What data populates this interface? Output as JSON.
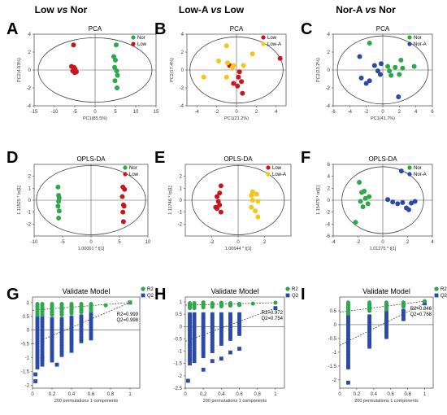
{
  "column_titles": [
    {
      "parts": [
        {
          "t": "Low ",
          "i": false
        },
        {
          "t": "vs",
          "i": true
        },
        {
          "t": " Nor",
          "i": false
        }
      ]
    },
    {
      "parts": [
        {
          "t": "Low-A ",
          "i": false
        },
        {
          "t": "vs",
          "i": true
        },
        {
          "t": " Low",
          "i": false
        }
      ]
    },
    {
      "parts": [
        {
          "t": "Nor-A ",
          "i": false
        },
        {
          "t": "vs",
          "i": true
        },
        {
          "t": " Nor",
          "i": false
        }
      ]
    }
  ],
  "colors": {
    "Nor": "#2ea84a",
    "Low": "#c8161d",
    "Low-A": "#f5c518",
    "Nor-A": "#2b4aa8",
    "R2": "#2ea84a",
    "Q2": "#2b4aa8"
  },
  "chart_data": [
    {
      "panel": "A",
      "type": "scatter",
      "title": "PCA",
      "xlabel": "PC1(85.5%)",
      "ylabel": "PC2(4.03%)",
      "xlim": [
        -15,
        15
      ],
      "ylim": [
        -4,
        4
      ],
      "xticks": [
        -15,
        -10,
        -5,
        0,
        5,
        10,
        15
      ],
      "yticks": [
        -4,
        -2,
        0,
        2,
        4
      ],
      "legend": [
        "Nor",
        "Low"
      ],
      "legend_position": "top-right",
      "ellipse": {
        "rx": 14,
        "ry": 3.6
      },
      "series": [
        {
          "name": "Nor",
          "points": [
            [
              5.2,
              2.8
            ],
            [
              4.6,
              1.5
            ],
            [
              5.0,
              1.1
            ],
            [
              4.8,
              0.3
            ],
            [
              5.3,
              -0.1
            ],
            [
              5.5,
              -0.6
            ],
            [
              4.9,
              -1.2
            ],
            [
              5.4,
              -2.0
            ]
          ]
        },
        {
          "name": "Low",
          "points": [
            [
              -5.3,
              2.8
            ],
            [
              -5.8,
              0.4
            ],
            [
              -5.2,
              0.3
            ],
            [
              -4.9,
              0.1
            ],
            [
              -5.5,
              -0.1
            ],
            [
              -4.6,
              -0.2
            ],
            [
              -5.0,
              -0.3
            ]
          ]
        }
      ]
    },
    {
      "panel": "B",
      "type": "scatter",
      "title": "PCA",
      "xlabel": "PC1(21.2%)",
      "ylabel": "PC2(17.4%)",
      "xlim": [
        -5,
        5
      ],
      "ylim": [
        -4,
        4
      ],
      "xticks": [
        -4,
        -2,
        0,
        2,
        4
      ],
      "yticks": [
        -4,
        -2,
        0,
        2,
        4
      ],
      "legend": [
        "Low",
        "Low-A"
      ],
      "legend_position": "top-right",
      "ellipse": {
        "rx": 4.7,
        "ry": 3.7
      },
      "series": [
        {
          "name": "Low",
          "points": [
            [
              4.4,
              1.3
            ],
            [
              -0.7,
              0.5
            ],
            [
              0.3,
              -0.2
            ],
            [
              0.2,
              -0.8
            ],
            [
              0.5,
              -1.3
            ],
            [
              0.1,
              -1.8
            ],
            [
              -0.3,
              -1.5
            ],
            [
              0.6,
              -2.6
            ]
          ]
        },
        {
          "name": "Low-A",
          "points": [
            [
              -1.0,
              2.7
            ],
            [
              1.6,
              1.8
            ],
            [
              -1.8,
              1.0
            ],
            [
              -0.9,
              0.8
            ],
            [
              -0.3,
              0.5
            ],
            [
              -0.4,
              0.3
            ],
            [
              0.7,
              0.5
            ],
            [
              -3.3,
              -0.8
            ],
            [
              -1.0,
              -0.8
            ]
          ]
        }
      ]
    },
    {
      "panel": "C",
      "type": "scatter",
      "title": "PCA",
      "xlabel": "PC1(41.7%)",
      "ylabel": "PC2(23.2%)",
      "xlim": [
        -6,
        6
      ],
      "ylim": [
        -4,
        4
      ],
      "xticks": [
        -6,
        -4,
        -2,
        0,
        2,
        4,
        6
      ],
      "yticks": [
        -4,
        -2,
        0,
        2,
        4
      ],
      "legend": [
        "Nor",
        "Nor-A"
      ],
      "legend_position": "top-right",
      "ellipse": {
        "rx": 5.5,
        "ry": 3.8
      },
      "series": [
        {
          "name": "Nor",
          "points": [
            [
              -1.6,
              3.0
            ],
            [
              0.6,
              0.4
            ],
            [
              1.5,
              0.3
            ],
            [
              2.2,
              1.1
            ],
            [
              2.4,
              0.2
            ],
            [
              3.8,
              0.4
            ],
            [
              0.8,
              -0.1
            ],
            [
              1.0,
              -0.6
            ],
            [
              2.0,
              -0.5
            ]
          ]
        },
        {
          "name": "Nor-A",
          "points": [
            [
              -2.8,
              1.5
            ],
            [
              -1.0,
              0.5
            ],
            [
              -0.6,
              -0.1
            ],
            [
              -0.3,
              -0.5
            ],
            [
              -0.2,
              0.7
            ],
            [
              -2.6,
              -0.9
            ],
            [
              -1.6,
              -1.2
            ],
            [
              -2.0,
              -1.5
            ],
            [
              1.9,
              -3.0
            ]
          ]
        }
      ]
    },
    {
      "panel": "D",
      "type": "scatter",
      "title": "OPLS-DA",
      "xlabel": "1.00001 * t[1]",
      "ylabel": "1.11525 * to[1]",
      "xlim": [
        -10,
        10
      ],
      "ylim": [
        -3,
        3
      ],
      "xticks": [
        -10,
        -5,
        0,
        5,
        10
      ],
      "yticks": [
        -2,
        -1,
        0,
        1,
        2
      ],
      "legend": [
        "Nor",
        "Low"
      ],
      "legend_position": "top-right",
      "ellipse": {
        "rx": 9.6,
        "ry": 2.9
      },
      "series": [
        {
          "name": "Nor",
          "points": [
            [
              -5.8,
              1.1
            ],
            [
              -5.7,
              0.4
            ],
            [
              -5.6,
              0.2
            ],
            [
              -5.7,
              -0.1
            ],
            [
              -5.8,
              -0.5
            ],
            [
              -5.6,
              -0.9
            ],
            [
              -5.7,
              -1.5
            ]
          ]
        },
        {
          "name": "Low",
          "points": [
            [
              5.6,
              1.1
            ],
            [
              5.9,
              0.9
            ],
            [
              5.5,
              0.3
            ],
            [
              5.7,
              -0.4
            ],
            [
              5.8,
              -0.5
            ],
            [
              5.6,
              -1.0
            ],
            [
              5.7,
              -1.8
            ]
          ]
        }
      ]
    },
    {
      "panel": "E",
      "type": "scatter",
      "title": "OPLS-DA",
      "xlabel": "1.00644 * t[1]",
      "ylabel": "1.11746 * to[1]",
      "xlim": [
        -4,
        4
      ],
      "ylim": [
        -3,
        3
      ],
      "xticks": [
        -2,
        0,
        2
      ],
      "yticks": [
        -2,
        -1,
        0,
        1,
        2
      ],
      "legend": [
        "Low",
        "Low-A"
      ],
      "legend_position": "top-right",
      "ellipse": {
        "rx": 3.5,
        "ry": 2.9
      },
      "series": [
        {
          "name": "Low",
          "points": [
            [
              -1.3,
              1.2
            ],
            [
              -1.4,
              0.6
            ],
            [
              -1.6,
              0.3
            ],
            [
              -1.5,
              -0.1
            ],
            [
              -1.4,
              -0.4
            ],
            [
              -1.7,
              -0.6
            ],
            [
              -1.6,
              -0.7
            ],
            [
              -1.3,
              -1.0
            ]
          ]
        },
        {
          "name": "Low-A",
          "points": [
            [
              1.1,
              0.7
            ],
            [
              1.0,
              0.4
            ],
            [
              1.4,
              0.5
            ],
            [
              1.1,
              0.0
            ],
            [
              1.5,
              -0.1
            ],
            [
              1.0,
              -0.6
            ],
            [
              1.3,
              -0.9
            ],
            [
              1.5,
              -1.4
            ]
          ]
        }
      ]
    },
    {
      "panel": "F",
      "type": "scatter",
      "title": "OPLS-DA",
      "xlabel": "1.01275 * t[1]",
      "ylabel": "1.15479 * to[1]",
      "xlim": [
        -4,
        4
      ],
      "ylim": [
        -6,
        6
      ],
      "xticks": [
        -4,
        -2,
        0,
        2,
        4
      ],
      "yticks": [
        -6,
        -4,
        -2,
        0,
        2,
        4,
        6
      ],
      "legend": [
        "Nor",
        "Nor-A"
      ],
      "legend_position": "top-right",
      "ellipse": {
        "rx": 3.3,
        "ry": 5.6
      },
      "series": [
        {
          "name": "Nor",
          "points": [
            [
              -1.9,
              3.0
            ],
            [
              -1.7,
              1.3
            ],
            [
              -1.5,
              1.5
            ],
            [
              -1.4,
              0.3
            ],
            [
              -1.1,
              0.6
            ],
            [
              -1.8,
              -0.2
            ],
            [
              -1.2,
              -0.6
            ],
            [
              -1.6,
              -1.1
            ],
            [
              -2.2,
              -3.7
            ]
          ]
        },
        {
          "name": "Nor-A",
          "points": [
            [
              1.5,
              4.9
            ],
            [
              0.4,
              0.1
            ],
            [
              0.8,
              -0.3
            ],
            [
              1.6,
              -0.4
            ],
            [
              2.3,
              -0.5
            ],
            [
              2.6,
              -0.2
            ],
            [
              1.2,
              -0.6
            ],
            [
              1.9,
              -1.3
            ],
            [
              2.1,
              -1.6
            ]
          ]
        }
      ]
    },
    {
      "panel": "G",
      "type": "scatter",
      "title": "Validate Model",
      "xlabel": "200 permutations 1 components",
      "xlim": [
        0,
        1.1
      ],
      "ylim": [
        -2.1,
        1.2
      ],
      "xticks": [
        0,
        0.2,
        0.4,
        0.6,
        0.8,
        1
      ],
      "yticks": [
        -2,
        -1.5,
        -1,
        -0.5,
        0,
        0.5,
        1
      ],
      "legend": [
        "R2",
        "Q2"
      ],
      "legend_position": "top-right",
      "annotation": [
        "R2=0.999",
        "Q2=0.998"
      ],
      "r2_line": [
        [
          0,
          0.72
        ],
        [
          1,
          1.0
        ]
      ],
      "q2_line": [
        [
          0,
          -0.5
        ],
        [
          1,
          1.0
        ]
      ],
      "permutations": [
        {
          "x": 0.05,
          "r2_min": 0.55,
          "r2_max": 0.95,
          "q2_min": -1.4,
          "q2_max": 0.45
        },
        {
          "x": 0.1,
          "r2_min": 0.55,
          "r2_max": 0.95,
          "q2_min": -1.3,
          "q2_max": 0.45
        },
        {
          "x": 0.2,
          "r2_min": 0.55,
          "r2_max": 0.95,
          "q2_min": -1.1,
          "q2_max": 0.4
        },
        {
          "x": 0.3,
          "r2_min": 0.55,
          "r2_max": 0.95,
          "q2_min": -0.95,
          "q2_max": 0.4
        },
        {
          "x": 0.4,
          "r2_min": 0.6,
          "r2_max": 0.95,
          "q2_min": -0.8,
          "q2_max": 0.45
        },
        {
          "x": 0.5,
          "r2_min": 0.65,
          "r2_max": 0.95,
          "q2_min": -0.45,
          "q2_max": 0.5
        },
        {
          "x": 0.6,
          "r2_min": 0.7,
          "r2_max": 0.95,
          "q2_min": -0.3,
          "q2_max": 0.6
        }
      ],
      "extra_r2": [
        [
          0.75,
          0.9
        ],
        [
          1.0,
          1.0
        ]
      ],
      "extra_q2": [
        [
          0.03,
          -1.6
        ],
        [
          0.03,
          -1.85
        ],
        [
          0.1,
          -1.0
        ],
        [
          0.25,
          -1.25
        ],
        [
          1.0,
          1.0
        ]
      ]
    },
    {
      "panel": "H",
      "type": "scatter",
      "title": "Validate Model",
      "xlabel": "200 permutations 1 components",
      "xlim": [
        0,
        1.1
      ],
      "ylim": [
        -2.5,
        1.2
      ],
      "xticks": [
        0,
        0.2,
        0.4,
        0.6,
        0.8,
        1
      ],
      "yticks": [
        -2.5,
        -2,
        -1.5,
        -1,
        -0.5,
        0,
        0.5,
        1
      ],
      "legend": [
        "R2",
        "Q2"
      ],
      "legend_position": "top-right",
      "annotation": [
        "R2=0.972",
        "Q2=0.754"
      ],
      "r2_line": [
        [
          0,
          0.87
        ],
        [
          1,
          0.97
        ]
      ],
      "q2_line": [
        [
          0,
          -0.6
        ],
        [
          1,
          0.75
        ]
      ],
      "permutations": [
        {
          "x": 0.05,
          "r2_min": 0.75,
          "r2_max": 0.98,
          "q2_min": -1.5,
          "q2_max": 0.5
        },
        {
          "x": 0.1,
          "r2_min": 0.75,
          "r2_max": 0.98,
          "q2_min": -1.4,
          "q2_max": 0.5
        },
        {
          "x": 0.2,
          "r2_min": 0.78,
          "r2_max": 0.98,
          "q2_min": -1.2,
          "q2_max": 0.5
        },
        {
          "x": 0.3,
          "r2_min": 0.8,
          "r2_max": 0.97,
          "q2_min": -1.0,
          "q2_max": 0.5
        },
        {
          "x": 0.4,
          "r2_min": 0.82,
          "r2_max": 0.97,
          "q2_min": -0.7,
          "q2_max": 0.5
        },
        {
          "x": 0.5,
          "r2_min": 0.85,
          "r2_max": 0.97,
          "q2_min": -0.5,
          "q2_max": 0.5
        },
        {
          "x": 0.6,
          "r2_min": 0.87,
          "r2_max": 0.96,
          "q2_min": -0.3,
          "q2_max": 0.5
        }
      ],
      "extra_r2": [
        [
          0.75,
          0.93
        ],
        [
          1.0,
          0.97
        ]
      ],
      "extra_q2": [
        [
          0.03,
          -2.2
        ],
        [
          0.2,
          -1.75
        ],
        [
          0.3,
          -1.4
        ],
        [
          0.4,
          -1.3
        ],
        [
          0.5,
          -1.05
        ],
        [
          0.6,
          -0.9
        ],
        [
          1.0,
          0.75
        ]
      ]
    },
    {
      "panel": "I",
      "type": "scatter",
      "title": "Validate Model",
      "xlabel": "200 permutations 1 components",
      "xlim": [
        0,
        1.1
      ],
      "ylim": [
        -2.3,
        1.0
      ],
      "xticks": [
        0,
        0.2,
        0.4,
        0.6,
        0.8,
        1
      ],
      "yticks": [
        -2,
        -1.5,
        -1,
        -0.5,
        0,
        0.5
      ],
      "legend": [
        "R2",
        "Q2"
      ],
      "legend_position": "top-right",
      "annotation": [
        "R2=0.846",
        "Q2=0.768"
      ],
      "r2_line": [
        [
          0,
          0.45
        ],
        [
          1,
          0.85
        ]
      ],
      "q2_line": [
        [
          0,
          -0.75
        ],
        [
          1,
          0.77
        ]
      ],
      "permutations": [
        {
          "x": 0.1,
          "r2_min": 0.4,
          "r2_max": 0.8,
          "q2_min": -1.6,
          "q2_max": 0.35
        },
        {
          "x": 0.35,
          "r2_min": 0.5,
          "r2_max": 0.8,
          "q2_min": -0.8,
          "q2_max": 0.3
        },
        {
          "x": 0.55,
          "r2_min": 0.55,
          "r2_max": 0.8,
          "q2_min": -0.45,
          "q2_max": 0.45
        },
        {
          "x": 0.75,
          "r2_min": 0.65,
          "r2_max": 0.8,
          "q2_min": 0.2,
          "q2_max": 0.5
        }
      ],
      "extra_r2": [
        [
          1.0,
          0.85
        ]
      ],
      "extra_q2": [
        [
          0.1,
          -2.1
        ],
        [
          1.0,
          0.77
        ]
      ]
    }
  ]
}
